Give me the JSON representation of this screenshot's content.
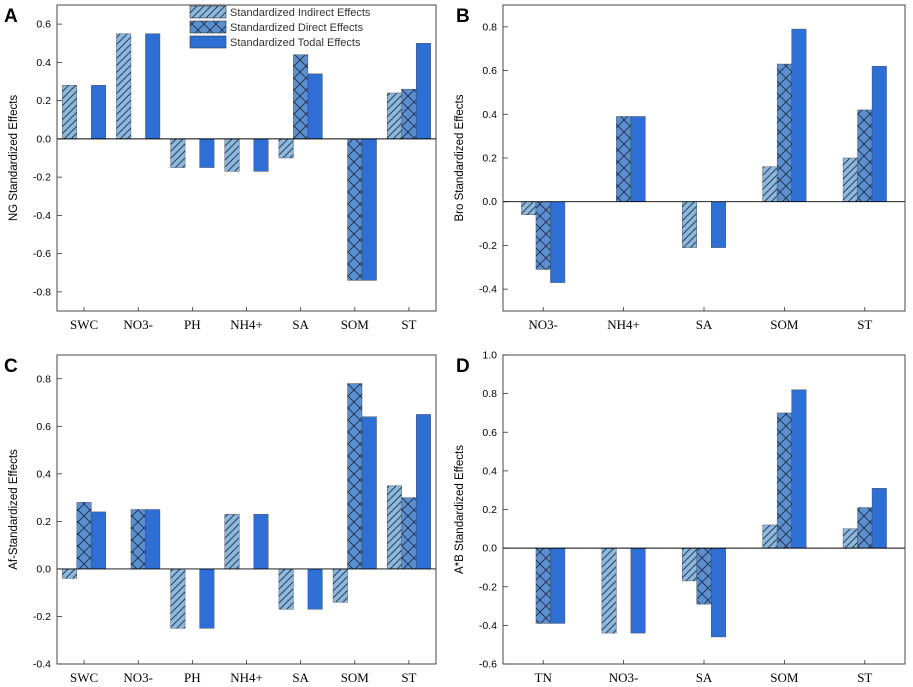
{
  "colors": {
    "indirect": "#8db8dd",
    "direct": "#5b8fcf",
    "total": "#2e6fd6",
    "hatch": "#1a2a44",
    "axis": "#333333"
  },
  "legend": [
    {
      "key": "indirect",
      "label": "Standardized Indirect Effects"
    },
    {
      "key": "direct",
      "label": "Standardized Direct Effects"
    },
    {
      "key": "total",
      "label": "Standardized Todal Effects"
    }
  ],
  "chart_data": [
    {
      "panel": "A",
      "type": "bar",
      "ylabel": "NG Standardized Effects",
      "ylim": [
        -0.9,
        0.7
      ],
      "yticks": [
        "-0.8",
        "-0.6",
        "-0.4",
        "-0.2",
        "0.0",
        "0.2",
        "0.4",
        "0.6"
      ],
      "categories": [
        "SWC",
        "NO3-",
        "PH",
        "NH4+",
        "SA",
        "SOM",
        "ST"
      ],
      "series": [
        {
          "name": "Standardized Indirect Effects",
          "key": "indirect",
          "values": [
            0.28,
            0.55,
            -0.15,
            -0.17,
            -0.1,
            0.0,
            0.24
          ]
        },
        {
          "name": "Standardized Direct Effects",
          "key": "direct",
          "values": [
            0.0,
            0.0,
            0.0,
            0.0,
            0.44,
            -0.74,
            0.26
          ]
        },
        {
          "name": "Standardized Todal Effects",
          "key": "total",
          "values": [
            0.28,
            0.55,
            -0.15,
            -0.17,
            0.34,
            -0.74,
            0.5
          ]
        }
      ]
    },
    {
      "panel": "B",
      "type": "bar",
      "ylabel": "Bro Standardized Effects",
      "ylim": [
        -0.5,
        0.9
      ],
      "yticks": [
        "-0.4",
        "-0.2",
        "0.0",
        "0.2",
        "0.4",
        "0.6",
        "0.8"
      ],
      "categories": [
        "NO3-",
        "NH4+",
        "SA",
        "SOM",
        "ST"
      ],
      "series": [
        {
          "name": "Standardized Indirect Effects",
          "key": "indirect",
          "values": [
            -0.06,
            0.0,
            -0.21,
            0.16,
            0.2
          ]
        },
        {
          "name": "Standardized Direct Effects",
          "key": "direct",
          "values": [
            -0.31,
            0.39,
            0.0,
            0.63,
            0.42
          ]
        },
        {
          "name": "Standardized Todal Effects",
          "key": "total",
          "values": [
            -0.37,
            0.39,
            -0.21,
            0.79,
            0.62
          ]
        }
      ]
    },
    {
      "panel": "C",
      "type": "bar",
      "ylabel": "Af-Standardized Effects",
      "ylim": [
        -0.4,
        0.9
      ],
      "yticks": [
        "-0.4",
        "-0.2",
        "0.0",
        "0.2",
        "0.4",
        "0.6",
        "0.8"
      ],
      "categories": [
        "SWC",
        "NO3-",
        "PH",
        "NH4+",
        "SA",
        "SOM",
        "ST"
      ],
      "series": [
        {
          "name": "Standardized Indirect Effects",
          "key": "indirect",
          "values": [
            -0.04,
            0.0,
            -0.25,
            0.23,
            -0.17,
            -0.14,
            0.35
          ]
        },
        {
          "name": "Standardized Direct Effects",
          "key": "direct",
          "values": [
            0.28,
            0.25,
            0.0,
            0.0,
            0.0,
            0.78,
            0.3
          ]
        },
        {
          "name": "Standardized Todal Effects",
          "key": "total",
          "values": [
            0.24,
            0.25,
            -0.25,
            0.23,
            -0.17,
            0.64,
            0.65
          ]
        }
      ]
    },
    {
      "panel": "D",
      "type": "bar",
      "ylabel": "A*B Standardized Effects",
      "ylim": [
        -0.6,
        1.0
      ],
      "yticks": [
        "-0.6",
        "-0.4",
        "-0.2",
        "0.0",
        "0.2",
        "0.4",
        "0.6",
        "0.8",
        "1.0"
      ],
      "categories": [
        "TN",
        "NO3-",
        "SA",
        "SOM",
        "ST"
      ],
      "series": [
        {
          "name": "Standardized Indirect Effects",
          "key": "indirect",
          "values": [
            0.0,
            -0.44,
            -0.17,
            0.12,
            0.1
          ]
        },
        {
          "name": "Standardized Direct Effects",
          "key": "direct",
          "values": [
            -0.39,
            0.0,
            -0.29,
            0.7,
            0.21
          ]
        },
        {
          "name": "Standardized Todal Effects",
          "key": "total",
          "values": [
            -0.39,
            -0.44,
            -0.46,
            0.82,
            0.31
          ]
        }
      ]
    }
  ]
}
